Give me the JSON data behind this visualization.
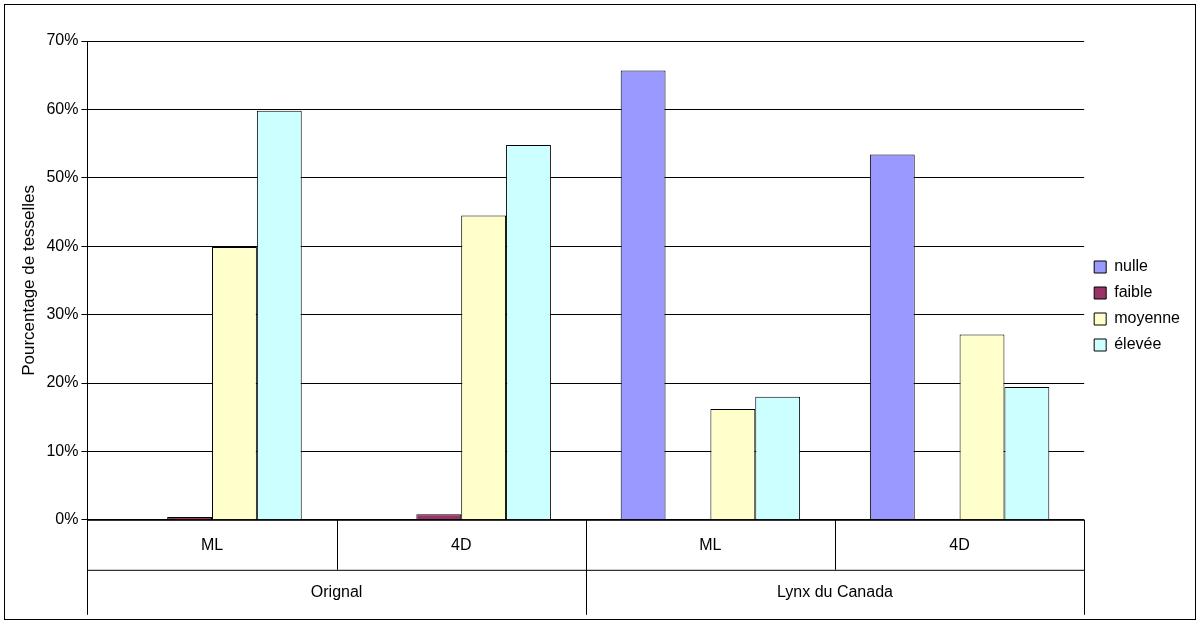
{
  "chart_data": {
    "type": "bar",
    "ylabel": "Pourcentage de tesselles",
    "categories": [
      "ML",
      "4D",
      "ML",
      "4D"
    ],
    "series": [
      {
        "name": "nulle",
        "color": "#9999ff",
        "values": [
          0,
          0,
          65.7,
          53.4
        ]
      },
      {
        "name": "faible",
        "color": "#993366",
        "values": [
          0.4,
          0.8,
          0,
          0
        ]
      },
      {
        "name": "moyenne",
        "color": "#ffffcc",
        "values": [
          39.9,
          44.5,
          16.2,
          27.1
        ]
      },
      {
        "name": "élevée",
        "color": "#ccffff",
        "values": [
          59.8,
          54.8,
          18.0,
          19.4
        ]
      }
    ],
    "annotations": [
      "Orignal",
      "Lynx du Canada"
    ],
    "ylim": [
      0,
      70
    ],
    "yticks": [
      {
        "value": 0,
        "label": "0%"
      },
      {
        "value": 10,
        "label": "10%"
      },
      {
        "value": 20,
        "label": "20%"
      },
      {
        "value": 30,
        "label": "30%"
      },
      {
        "value": 40,
        "label": "40%"
      },
      {
        "value": 50,
        "label": "50%"
      },
      {
        "value": 60,
        "label": "60%"
      },
      {
        "value": 70,
        "label": "70%"
      }
    ],
    "grid": "y",
    "legend": "right"
  }
}
